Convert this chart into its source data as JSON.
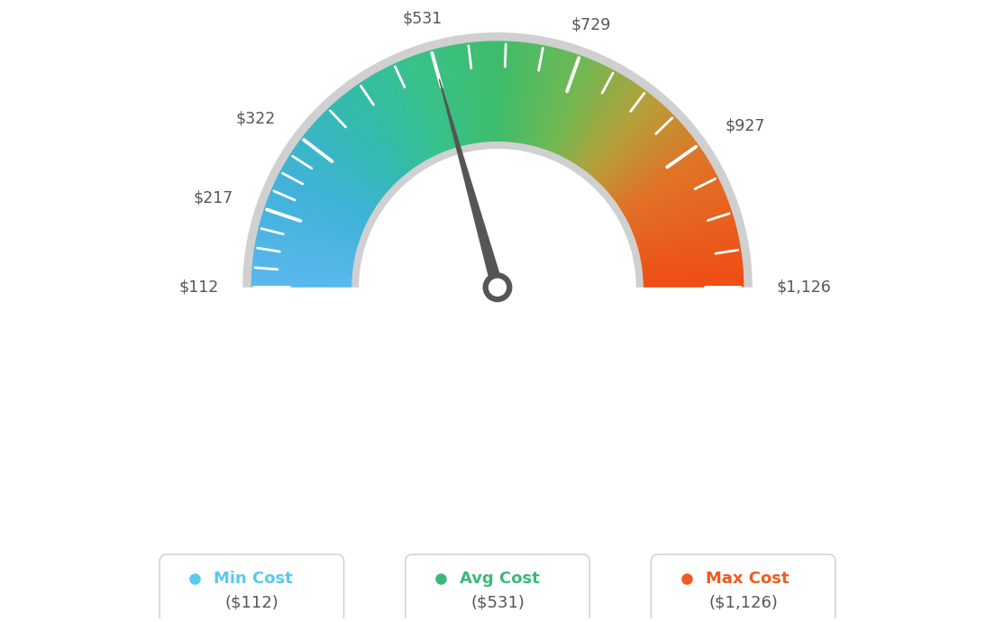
{
  "min_val": 112,
  "max_val": 1126,
  "avg_val": 531,
  "tick_labels": [
    "$112",
    "$217",
    "$322",
    "$531",
    "$729",
    "$927",
    "$1,126"
  ],
  "tick_values": [
    112,
    217,
    322,
    531,
    729,
    927,
    1126
  ],
  "legend": [
    {
      "label": "Min Cost",
      "sublabel": "($112)",
      "color": "#5bc8f0"
    },
    {
      "label": "Avg Cost",
      "sublabel": "($531)",
      "color": "#3db87a"
    },
    {
      "label": "Max Cost",
      "sublabel": "($1,126)",
      "color": "#f05a20"
    }
  ],
  "bg_color": "#ffffff",
  "colors_gradient": [
    [
      0.0,
      [
        0.35,
        0.72,
        0.93
      ]
    ],
    [
      0.15,
      [
        0.25,
        0.7,
        0.85
      ]
    ],
    [
      0.28,
      [
        0.2,
        0.73,
        0.68
      ]
    ],
    [
      0.38,
      [
        0.22,
        0.76,
        0.55
      ]
    ],
    [
      0.5,
      [
        0.24,
        0.74,
        0.42
      ]
    ],
    [
      0.62,
      [
        0.45,
        0.72,
        0.32
      ]
    ],
    [
      0.72,
      [
        0.72,
        0.62,
        0.22
      ]
    ],
    [
      0.82,
      [
        0.88,
        0.45,
        0.15
      ]
    ],
    [
      1.0,
      [
        0.94,
        0.3,
        0.08
      ]
    ]
  ]
}
